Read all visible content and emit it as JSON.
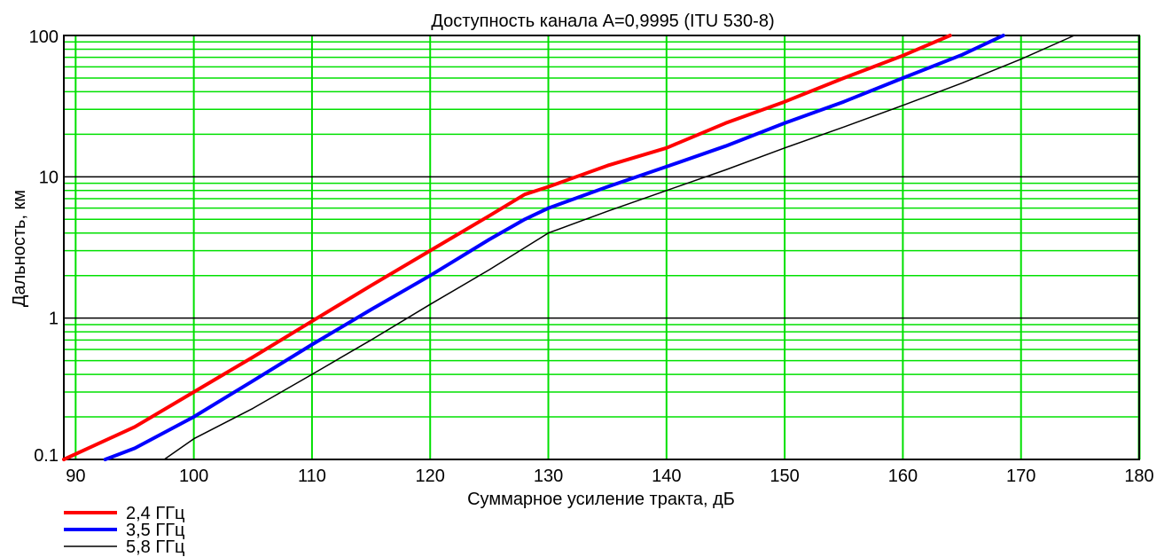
{
  "chart_data": {
    "type": "line",
    "title": "Доступность канала A=0,9995 (ITU 530-8)",
    "xlabel": "Суммарное усиление тракта, дБ",
    "ylabel": "Дальность, км",
    "xlim": [
      89,
      180
    ],
    "ylim": [
      0.1,
      100
    ],
    "y_scale": "log",
    "x_ticks": [
      90,
      100,
      110,
      120,
      130,
      140,
      150,
      160,
      170,
      180
    ],
    "x_tick_labels": [
      "90",
      "100",
      "110",
      "120",
      "130",
      "140",
      "150",
      "160",
      "170",
      "180"
    ],
    "y_ticks": [
      0.1,
      1,
      10,
      100
    ],
    "y_tick_labels": [
      "0.1",
      "1",
      "10",
      "100"
    ],
    "grid": true,
    "grid_color": "#00e000",
    "major_grid_color": "#000000",
    "legend_position": "bottom-left",
    "series": [
      {
        "name": "2,4 ГГц",
        "color": "#ff0000",
        "x": [
          89,
          95,
          100,
          105,
          110,
          115,
          120,
          125,
          128,
          130,
          135,
          140,
          145,
          150,
          155,
          160,
          164
        ],
        "y": [
          0.09,
          0.17,
          0.3,
          0.53,
          0.95,
          1.7,
          3.0,
          5.3,
          7.5,
          8.5,
          12,
          16,
          24,
          34,
          50,
          72,
          100
        ]
      },
      {
        "name": "3,5 ГГц",
        "color": "#0000ff",
        "x": [
          92.5,
          95,
          100,
          105,
          110,
          115,
          120,
          125,
          128,
          130,
          135,
          140,
          145,
          150,
          155,
          160,
          165,
          168.5
        ],
        "y": [
          0.09,
          0.12,
          0.2,
          0.36,
          0.65,
          1.15,
          2.0,
          3.6,
          5.0,
          6.0,
          8.5,
          11.8,
          16.5,
          24,
          34,
          50,
          73,
          100
        ]
      },
      {
        "name": "5,8 ГГц",
        "color": "#000000",
        "x": [
          97.5,
          100,
          105,
          110,
          115,
          120,
          125,
          130,
          135,
          140,
          145,
          150,
          155,
          160,
          165,
          170,
          174.5
        ],
        "y": [
          0.1,
          0.14,
          0.23,
          0.4,
          0.7,
          1.25,
          2.2,
          4.0,
          5.7,
          8.0,
          11.2,
          16,
          22.5,
          32,
          46,
          68,
          100
        ]
      }
    ]
  }
}
